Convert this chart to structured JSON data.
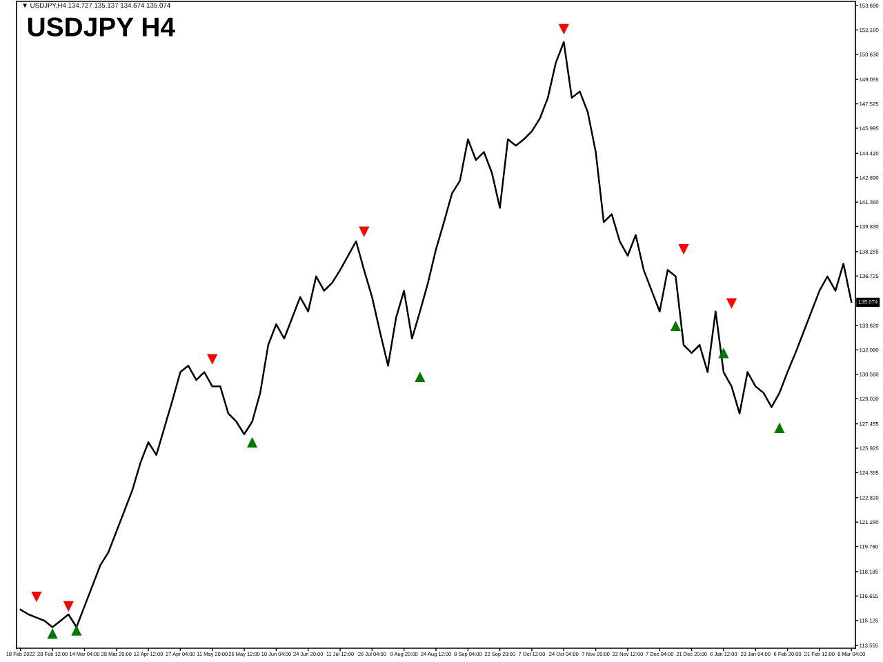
{
  "chart_data": {
    "type": "line",
    "title": "USDJPY H4",
    "subtitle": "▼ USDJPY,H4 134.727 135.137 134.674 135.074",
    "categories": [
      "18 Feb 2022",
      null,
      null,
      null,
      "28 Feb 12:00",
      null,
      null,
      null,
      "14 Mar 04:00",
      null,
      null,
      null,
      "28 Mar 20:00",
      null,
      null,
      null,
      "12 Apr 12:00",
      null,
      null,
      null,
      "27 Apr 04:00",
      null,
      null,
      null,
      "11 May 20:00",
      null,
      null,
      null,
      "26 May 12:00",
      null,
      null,
      null,
      "10 Jun 04:00",
      null,
      null,
      null,
      "24 Jun 20:00",
      null,
      null,
      null,
      "11 Jul 12:00",
      null,
      null,
      null,
      "26 Jul 04:00",
      null,
      null,
      null,
      "9 Aug 20:00",
      null,
      null,
      null,
      "24 Aug 12:00",
      null,
      null,
      null,
      "8 Sep 04:00",
      null,
      null,
      null,
      "22 Sep 20:00",
      null,
      null,
      null,
      "7 Oct 12:00",
      null,
      null,
      null,
      "24 Oct 04:00",
      null,
      null,
      null,
      "7 Nov 20:00",
      null,
      null,
      null,
      "22 Nov 12:00",
      null,
      null,
      null,
      "7 Dec 04:00",
      null,
      null,
      null,
      "21 Dec 20:00",
      null,
      null,
      null,
      "6 Jan 12:00",
      null,
      null,
      null,
      "23 Jan 04:00",
      null,
      null,
      null,
      "6 Feb 20:00",
      null,
      null,
      null,
      "21 Feb 12:00",
      null,
      null,
      null,
      "8 Mar 04:00"
    ],
    "series": [
      {
        "color": "#000000",
        "marker": "none",
        "values": [
          115.8,
          115.5,
          115.3,
          115.1,
          114.7,
          115.1,
          115.5,
          114.7,
          116.0,
          117.3,
          118.6,
          119.4,
          120.7,
          122.0,
          123.3,
          125.0,
          126.3,
          125.5,
          127.2,
          128.9,
          130.7,
          131.1,
          130.2,
          130.7,
          129.8,
          129.8,
          128.1,
          127.6,
          126.8,
          127.6,
          129.4,
          132.4,
          133.7,
          132.8,
          134.1,
          135.4,
          134.5,
          136.7,
          135.8,
          136.3,
          137.1,
          138.0,
          138.9,
          137.1,
          135.4,
          133.2,
          131.1,
          134.1,
          135.8,
          132.8,
          134.5,
          136.3,
          138.4,
          140.1,
          141.9,
          142.7,
          145.3,
          144.0,
          144.5,
          143.2,
          141.0,
          145.3,
          144.9,
          145.3,
          145.8,
          146.6,
          147.9,
          150.1,
          151.4,
          147.9,
          148.3,
          147.0,
          144.5,
          140.1,
          140.6,
          138.9,
          138.0,
          139.3,
          137.1,
          135.8,
          134.5,
          137.1,
          136.7,
          132.4,
          131.9,
          132.4,
          130.7,
          134.5,
          130.7,
          129.8,
          128.1,
          130.7,
          129.8,
          129.4,
          128.5,
          129.4,
          130.7,
          131.9,
          133.2,
          134.5,
          135.8,
          136.7,
          135.8,
          137.5,
          135.1
        ]
      },
      {
        "type": "scatter",
        "color": "#ff0000",
        "marker": "triangle",
        "values": [
          null,
          null,
          116.6,
          null,
          null,
          null,
          116.0,
          null,
          null,
          null,
          null,
          null,
          null,
          null,
          null,
          null,
          null,
          null,
          null,
          null,
          null,
          null,
          null,
          null,
          131.5,
          null,
          null,
          null,
          null,
          null,
          null,
          null,
          null,
          null,
          null,
          null,
          null,
          null,
          null,
          null,
          null,
          null,
          null,
          139.5,
          null,
          null,
          null,
          null,
          null,
          null,
          null,
          null,
          null,
          null,
          null,
          null,
          null,
          null,
          null,
          null,
          null,
          null,
          null,
          null,
          null,
          null,
          null,
          null,
          152.2,
          null,
          null,
          null,
          null,
          null,
          null,
          null,
          null,
          null,
          null,
          null,
          null,
          null,
          null,
          138.4,
          null,
          null,
          null,
          null,
          null,
          135.0,
          null,
          null,
          null,
          null,
          null,
          null,
          null,
          null,
          null,
          null,
          null,
          null,
          null,
          null,
          null
        ]
      },
      {
        "type": "scatter",
        "color": "#007a00",
        "marker": "triangle",
        "values": [
          null,
          null,
          null,
          null,
          114.3,
          null,
          null,
          114.5,
          null,
          null,
          null,
          null,
          null,
          null,
          null,
          null,
          null,
          null,
          null,
          null,
          null,
          null,
          null,
          null,
          null,
          null,
          null,
          null,
          null,
          126.3,
          null,
          null,
          null,
          null,
          null,
          null,
          null,
          null,
          null,
          null,
          null,
          null,
          null,
          null,
          null,
          null,
          null,
          null,
          null,
          null,
          130.4,
          null,
          null,
          null,
          null,
          null,
          null,
          null,
          null,
          null,
          null,
          null,
          null,
          null,
          null,
          null,
          null,
          null,
          null,
          null,
          null,
          null,
          null,
          null,
          null,
          null,
          null,
          null,
          null,
          null,
          null,
          null,
          133.6,
          null,
          null,
          null,
          null,
          null,
          131.9,
          null,
          null,
          null,
          null,
          null,
          null,
          127.2,
          null,
          null,
          null,
          null,
          null,
          null,
          null,
          null,
          null
        ]
      }
    ],
    "ylim": [
      113.38,
      153.95
    ],
    "yticks": [
      113.555,
      115.125,
      116.655,
      118.185,
      {
        "value": 119.76,
        "label": "119.760"
      },
      {
        "value": 121.29,
        "label": "121.290"
      },
      {
        "value": 122.82,
        "label": "122.820"
      },
      124.395,
      125.925,
      127.455,
      {
        "value": 129.03,
        "label": "129.030"
      },
      {
        "value": 130.56,
        "label": "130.560"
      },
      {
        "value": 132.09,
        "label": "132.090"
      },
      {
        "value": 133.62,
        "label": "133.620"
      },
      {
        "value": 135.195,
        "label": null
      },
      136.725,
      138.255,
      {
        "value": 139.83,
        "label": "139.830"
      },
      {
        "value": 141.36,
        "label": "141.360"
      },
      {
        "value": 142.89,
        "label": "142.890"
      },
      {
        "value": 144.42,
        "label": "144.420"
      },
      145.995,
      147.525,
      149.055,
      {
        "value": 150.63,
        "label": "150.630"
      },
      {
        "value": 152.16,
        "label": "152.160"
      },
      {
        "value": 153.69,
        "label": "153.690"
      }
    ],
    "annotations": [
      {
        "text": "135.074",
        "y": 135.074
      }
    ],
    "grid": false,
    "legend": false
  }
}
